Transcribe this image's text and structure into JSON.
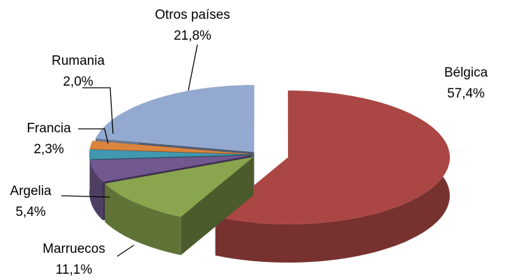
{
  "chart_data": {
    "type": "pie3d",
    "categories": [
      "Bélgica",
      "Marruecos",
      "Argelia",
      "Francia",
      "Rumania",
      "Otros países"
    ],
    "values": [
      57.4,
      11.1,
      5.4,
      2.3,
      2.0,
      21.8
    ],
    "value_labels": [
      "57,4%",
      "11,1%",
      "5,4%",
      "2,3%",
      "2,0%",
      "21,8%"
    ],
    "colors": [
      "#aa4643",
      "#89a54e",
      "#71588f",
      "#4198af",
      "#db843d",
      "#93a9cf"
    ]
  }
}
